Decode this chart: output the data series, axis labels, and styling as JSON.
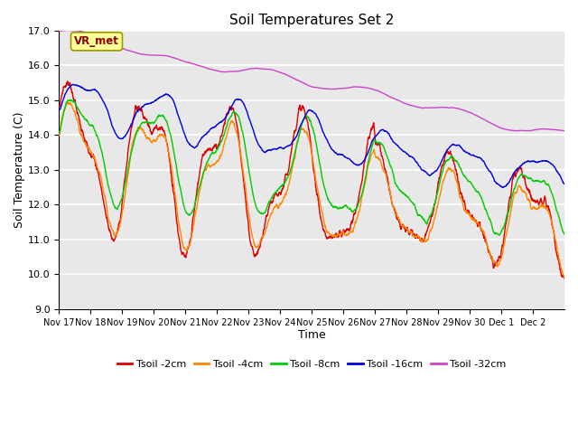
{
  "title": "Soil Temperatures Set 2",
  "xlabel": "Time",
  "ylabel": "Soil Temperature (C)",
  "ylim": [
    9.0,
    17.0
  ],
  "yticks": [
    9.0,
    10.0,
    11.0,
    12.0,
    13.0,
    14.0,
    15.0,
    16.0,
    17.0
  ],
  "xtick_labels": [
    "Nov 17",
    "Nov 18",
    "Nov 19",
    "Nov 20",
    "Nov 21",
    "Nov 22",
    "Nov 23",
    "Nov 24",
    "Nov 25",
    "Nov 26",
    "Nov 27",
    "Nov 28",
    "Nov 29",
    "Nov 30",
    "Dec 1",
    "Dec 2"
  ],
  "colors": {
    "Tsoil -2cm": "#dd0000",
    "Tsoil -4cm": "#ff8800",
    "Tsoil -8cm": "#00cc00",
    "Tsoil -16cm": "#0000dd",
    "Tsoil -32cm": "#cc44cc"
  },
  "annotation_label": "VR_met",
  "annotation_color": "#8b0000",
  "annotation_bg": "#ffff99",
  "plot_bg": "#e8e8e8",
  "fig_bg": "#ffffff",
  "grid_color": "#ffffff",
  "legend_entries": [
    "Tsoil -2cm",
    "Tsoil -4cm",
    "Tsoil -8cm",
    "Tsoil -16cm",
    "Tsoil -32cm"
  ]
}
